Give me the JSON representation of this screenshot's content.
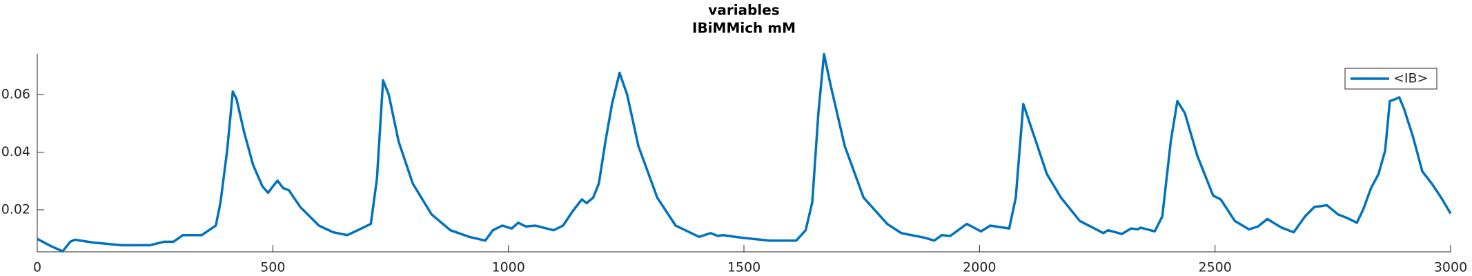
{
  "chart_data": {
    "type": "line",
    "title": "variables",
    "subtitle": "IBiMMich mM",
    "x": [
      0,
      30,
      54,
      70,
      80,
      120,
      179,
      239,
      269,
      289,
      309,
      349,
      379,
      389,
      403,
      415,
      423,
      439,
      458,
      478,
      490,
      502,
      510,
      522,
      534,
      558,
      598,
      628,
      658,
      688,
      708,
      721,
      734,
      746,
      767,
      797,
      837,
      877,
      917,
      951,
      967,
      987,
      1007,
      1021,
      1037,
      1057,
      1096,
      1116,
      1136,
      1156,
      1166,
      1180,
      1192,
      1206,
      1220,
      1236,
      1252,
      1276,
      1316,
      1355,
      1405,
      1429,
      1445,
      1455,
      1495,
      1555,
      1611,
      1631,
      1645,
      1658,
      1670,
      1684,
      1714,
      1754,
      1804,
      1834,
      1884,
      1904,
      1920,
      1938,
      1973,
      2003,
      2023,
      2063,
      2077,
      2093,
      2113,
      2143,
      2173,
      2213,
      2263,
      2273,
      2302,
      2322,
      2336,
      2342,
      2372,
      2388,
      2406,
      2420,
      2436,
      2462,
      2496,
      2512,
      2542,
      2572,
      2591,
      2611,
      2641,
      2667,
      2691,
      2711,
      2727,
      2737,
      2761,
      2781,
      2801,
      2815,
      2831,
      2847,
      2861,
      2871,
      2883,
      2891,
      2901,
      2920,
      2940,
      2960,
      2980,
      3000
    ],
    "series": [
      {
        "name": "<IB>",
        "color": "#0072bd",
        "values": [
          0.0099,
          0.0073,
          0.0056,
          0.0089,
          0.0096,
          0.0086,
          0.0077,
          0.0077,
          0.0089,
          0.0089,
          0.0112,
          0.0112,
          0.0145,
          0.0226,
          0.0405,
          0.061,
          0.0584,
          0.047,
          0.0356,
          0.0281,
          0.0259,
          0.0285,
          0.0301,
          0.0275,
          0.0268,
          0.021,
          0.0145,
          0.0122,
          0.0112,
          0.0135,
          0.0151,
          0.0307,
          0.0649,
          0.06,
          0.0437,
          0.0291,
          0.0184,
          0.0129,
          0.0106,
          0.0093,
          0.0129,
          0.0145,
          0.0135,
          0.0155,
          0.0142,
          0.0145,
          0.0129,
          0.0145,
          0.0194,
          0.0236,
          0.0223,
          0.0242,
          0.0291,
          0.0437,
          0.0567,
          0.0675,
          0.06,
          0.0421,
          0.0242,
          0.0145,
          0.0106,
          0.0119,
          0.0109,
          0.0112,
          0.0103,
          0.0093,
          0.0093,
          0.0129,
          0.0226,
          0.0535,
          0.074,
          0.0632,
          0.0421,
          0.0242,
          0.0151,
          0.0119,
          0.0103,
          0.0093,
          0.0112,
          0.0109,
          0.0151,
          0.0125,
          0.0145,
          0.0135,
          0.0242,
          0.0567,
          0.047,
          0.0324,
          0.0242,
          0.0161,
          0.0119,
          0.0129,
          0.0116,
          0.0135,
          0.0132,
          0.0138,
          0.0125,
          0.0177,
          0.0437,
          0.0577,
          0.0535,
          0.0389,
          0.0249,
          0.0236,
          0.0161,
          0.0132,
          0.0142,
          0.0168,
          0.0138,
          0.0122,
          0.0177,
          0.021,
          0.0213,
          0.0216,
          0.0184,
          0.0171,
          0.0155,
          0.0203,
          0.0275,
          0.0324,
          0.0405,
          0.0577,
          0.0584,
          0.059,
          0.0551,
          0.0454,
          0.0333,
          0.0291,
          0.0242,
          0.0187
        ]
      }
    ],
    "xlim": [
      0,
      3000
    ],
    "xticks": [
      0,
      500,
      1000,
      1500,
      2000,
      2500,
      3000
    ],
    "ylim": [
      0.0054,
      0.0741
    ],
    "yticks": [
      0.02,
      0.04,
      0.06
    ],
    "legend": "top-right"
  }
}
